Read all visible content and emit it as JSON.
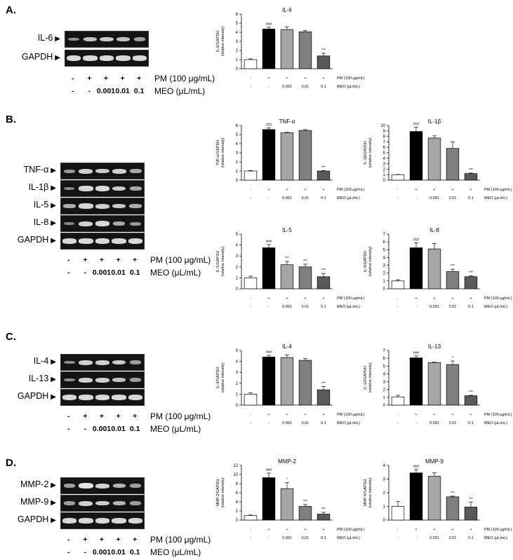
{
  "panels": [
    {
      "label": "A.",
      "gel": {
        "markers": [
          "IL-6",
          "GAPDH"
        ],
        "bands": [
          [
            0.35,
            0.7,
            0.75,
            0.7,
            0.45
          ],
          [
            0.85,
            0.85,
            0.85,
            0.85,
            0.85
          ]
        ]
      },
      "conditions": {
        "pm_values": [
          "-",
          "+",
          "+",
          "+",
          "+"
        ],
        "meo_values": [
          "-",
          "-",
          "0.001",
          "0.01",
          "0.1"
        ],
        "pm_label": "PM (100 μg/mL)",
        "meo_label": "MEO (μL/mL)"
      }
    },
    {
      "label": "B.",
      "gel": {
        "markers": [
          "TNF-α",
          "IL-1β",
          "IL-5",
          "IL-8",
          "GAPDH"
        ],
        "bands": [
          [
            0.4,
            0.8,
            0.75,
            0.8,
            0.5
          ],
          [
            0.3,
            0.85,
            0.85,
            0.75,
            0.5
          ],
          [
            0.55,
            0.85,
            0.8,
            0.75,
            0.55
          ],
          [
            0.3,
            0.8,
            0.85,
            0.5,
            0.4
          ],
          [
            0.85,
            0.85,
            0.85,
            0.85,
            0.85
          ]
        ]
      },
      "conditions": {
        "pm_values": [
          "-",
          "+",
          "+",
          "+",
          "+"
        ],
        "meo_values": [
          "-",
          "-",
          "0.001",
          "0.01",
          "0.1"
        ],
        "pm_label": "PM (100 μg/mL)",
        "meo_label": "MEO (μL/mL)"
      }
    },
    {
      "label": "C.",
      "gel": {
        "markers": [
          "IL-4",
          "IL-13",
          "GAPDH"
        ],
        "bands": [
          [
            0.35,
            0.8,
            0.8,
            0.75,
            0.45
          ],
          [
            0.35,
            0.8,
            0.8,
            0.7,
            0.45
          ],
          [
            0.85,
            0.85,
            0.85,
            0.85,
            0.85
          ]
        ]
      },
      "conditions": {
        "pm_values": [
          "-",
          "+",
          "+",
          "+",
          "+"
        ],
        "meo_values": [
          "-",
          "-",
          "0.001",
          "0.01",
          "0.1"
        ],
        "pm_label": "PM (100 μg/mL)",
        "meo_label": "MEO (μL/mL)"
      }
    },
    {
      "label": "D.",
      "gel": {
        "markers": [
          "MMP-2",
          "MMP-9",
          "GAPDH"
        ],
        "bands": [
          [
            0.45,
            0.95,
            0.8,
            0.6,
            0.45
          ],
          [
            0.45,
            0.8,
            0.75,
            0.6,
            0.45
          ],
          [
            0.85,
            0.85,
            0.85,
            0.85,
            0.85
          ]
        ]
      },
      "conditions": {
        "pm_values": [
          "-",
          "+",
          "+",
          "+",
          "+"
        ],
        "meo_values": [
          "-",
          "-",
          "0.001",
          "0.01",
          "0.1"
        ],
        "pm_label": "PM (100 μg/mL)",
        "meo_label": "MEO (μL/mL)"
      }
    }
  ],
  "bar_colors": [
    "#ffffff",
    "#000000",
    "#a6a6a6",
    "#808080",
    "#595959"
  ],
  "chart_conditions": {
    "pm_values": [
      "-",
      "+",
      "+",
      "+",
      "+"
    ],
    "meo_values": [
      "-",
      "-",
      "0.001",
      "0.01",
      "0.1"
    ],
    "pm_label": "PM (100 μg/mL)",
    "meo_label": "MEO (μL/mL)"
  },
  "chart_data": [
    {
      "type": "bar",
      "title": "IL-6",
      "ylabel": [
        "IL-6/GAPDH",
        "(relative intensity)"
      ],
      "ylim": [
        0,
        6
      ],
      "yticks": [
        0,
        1,
        2,
        3,
        4,
        5,
        6
      ],
      "values": [
        1.0,
        4.35,
        4.3,
        4.05,
        1.4
      ],
      "errors": [
        0.08,
        0.2,
        0.3,
        0.15,
        0.3
      ],
      "annotations": [
        "",
        "###",
        "",
        "",
        "***"
      ]
    },
    {
      "type": "bar",
      "title": "TNF-α",
      "ylabel": [
        "TNF-α/GAPDH",
        "(relative intensity)"
      ],
      "ylim": [
        0,
        6
      ],
      "yticks": [
        0,
        1,
        2,
        3,
        4,
        5,
        6
      ],
      "values": [
        1.0,
        5.55,
        5.2,
        5.45,
        1.0
      ],
      "errors": [
        0.05,
        0.2,
        0.05,
        0.1,
        0.05
      ],
      "annotations": [
        "",
        "###",
        "",
        "",
        "***"
      ]
    },
    {
      "type": "bar",
      "title": "IL-1β",
      "ylabel": [
        "IL-1β/GAPDH",
        "(relative intensity)"
      ],
      "ylim": [
        0,
        10
      ],
      "yticks": [
        0,
        1,
        2,
        3,
        4,
        5,
        6,
        7,
        8,
        9,
        10
      ],
      "values": [
        1.0,
        8.9,
        7.7,
        5.8,
        1.2
      ],
      "errors": [
        0.05,
        0.8,
        0.4,
        1.2,
        0.1
      ],
      "annotations": [
        "",
        "###",
        "",
        "",
        "***"
      ]
    },
    {
      "type": "bar",
      "title": "IL-5",
      "ylabel": [
        "IL-5/GAPDH",
        "(relative intensity)"
      ],
      "ylim": [
        0,
        5
      ],
      "yticks": [
        0,
        1,
        2,
        3,
        4,
        5
      ],
      "values": [
        1.0,
        3.75,
        2.2,
        2.0,
        1.1
      ],
      "errors": [
        0.15,
        0.3,
        0.3,
        0.25,
        0.3
      ],
      "annotations": [
        "",
        "###",
        "***",
        "***",
        "***"
      ]
    },
    {
      "type": "bar",
      "title": "IL-8",
      "ylabel": [
        "IL-8/GAPDH",
        "(relative intensity)"
      ],
      "ylim": [
        0,
        7
      ],
      "yticks": [
        0,
        1,
        2,
        3,
        4,
        5,
        6,
        7
      ],
      "values": [
        1.0,
        5.25,
        5.1,
        2.2,
        1.55
      ],
      "errors": [
        0.15,
        0.65,
        0.7,
        0.3,
        0.1
      ],
      "annotations": [
        "",
        "###",
        "",
        "***",
        "***"
      ]
    },
    {
      "type": "bar",
      "title": "IL-4",
      "ylabel": [
        "IL-4/GAPDH",
        "(relative intensity)"
      ],
      "ylim": [
        0,
        5
      ],
      "yticks": [
        0,
        1,
        2,
        3,
        4,
        5
      ],
      "values": [
        1.0,
        4.4,
        4.35,
        4.1,
        1.4
      ],
      "errors": [
        0.12,
        0.15,
        0.25,
        0.15,
        0.3
      ],
      "annotations": [
        "",
        "###",
        "",
        "",
        "***"
      ]
    },
    {
      "type": "bar",
      "title": "IL-13",
      "ylabel": [
        "IL-13/GAPDH",
        "(relative intensity)"
      ],
      "ylim": [
        0,
        7
      ],
      "yticks": [
        0,
        1,
        2,
        3,
        4,
        5,
        6,
        7
      ],
      "values": [
        1.05,
        6.05,
        5.45,
        5.2,
        1.2
      ],
      "errors": [
        0.2,
        0.25,
        0.05,
        0.45,
        0.05
      ],
      "annotations": [
        "",
        "###",
        "",
        "*",
        "***"
      ]
    },
    {
      "type": "bar",
      "title": "MMP-2",
      "ylabel": [
        "MMP-2/GAPDH",
        "(relative intensity)"
      ],
      "ylim": [
        0,
        12
      ],
      "yticks": [
        0,
        2,
        4,
        6,
        8,
        10,
        12
      ],
      "values": [
        1.0,
        9.3,
        6.9,
        3.0,
        1.3
      ],
      "errors": [
        0.1,
        1.0,
        1.3,
        0.4,
        0.4
      ],
      "annotations": [
        "",
        "###",
        "*",
        "***",
        "***"
      ]
    },
    {
      "type": "bar",
      "title": "MMP-9",
      "ylabel": [
        "MMP-9/GAPDH",
        "(relative intensity)"
      ],
      "ylim": [
        0,
        4
      ],
      "yticks": [
        0,
        1,
        2,
        3,
        4
      ],
      "values": [
        1.0,
        3.45,
        3.2,
        1.7,
        0.95
      ],
      "errors": [
        0.35,
        0.25,
        0.25,
        0.05,
        0.35
      ],
      "annotations": [
        "",
        "###",
        "",
        "***",
        "***"
      ]
    }
  ]
}
